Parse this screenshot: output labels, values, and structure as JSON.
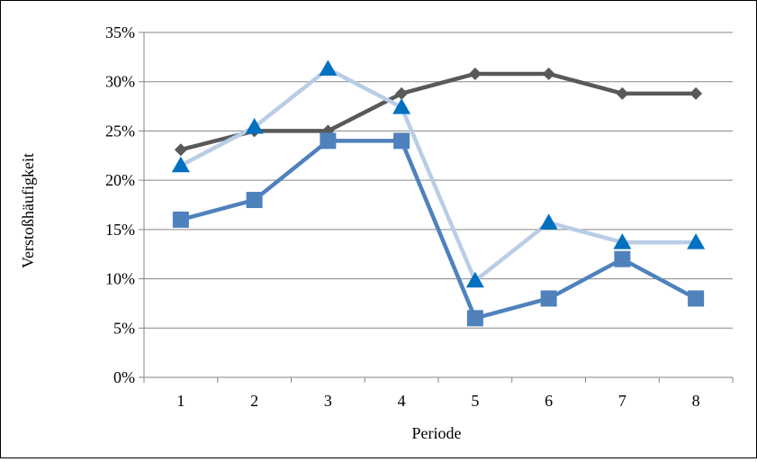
{
  "chart_data": {
    "type": "line",
    "title": "",
    "xlabel": "Periode",
    "ylabel": "Verstoßhäufigkeit",
    "categories": [
      "1",
      "2",
      "3",
      "4",
      "5",
      "6",
      "7",
      "8"
    ],
    "ylim": [
      0,
      35
    ],
    "yticks": [
      0,
      5,
      10,
      15,
      20,
      25,
      30,
      35
    ],
    "ytick_labels": [
      "0%",
      "5%",
      "10%",
      "15%",
      "20%",
      "25%",
      "30%",
      "35%"
    ],
    "grid": "horizontal",
    "legend": "none",
    "series": [
      {
        "marker": "diamond",
        "color": "#595959",
        "values": [
          23.1,
          25.0,
          25.0,
          28.8,
          30.8,
          30.8,
          28.8,
          28.8
        ]
      },
      {
        "marker": "triangle",
        "color": "#B9CDE5",
        "marker_color": "#0070C0",
        "values": [
          21.5,
          25.4,
          31.3,
          27.4,
          9.8,
          15.7,
          13.7,
          13.7
        ]
      },
      {
        "marker": "square",
        "color": "#4F81BD",
        "values": [
          16.0,
          18.0,
          24.0,
          24.0,
          6.0,
          8.0,
          12.0,
          8.0
        ]
      }
    ]
  }
}
